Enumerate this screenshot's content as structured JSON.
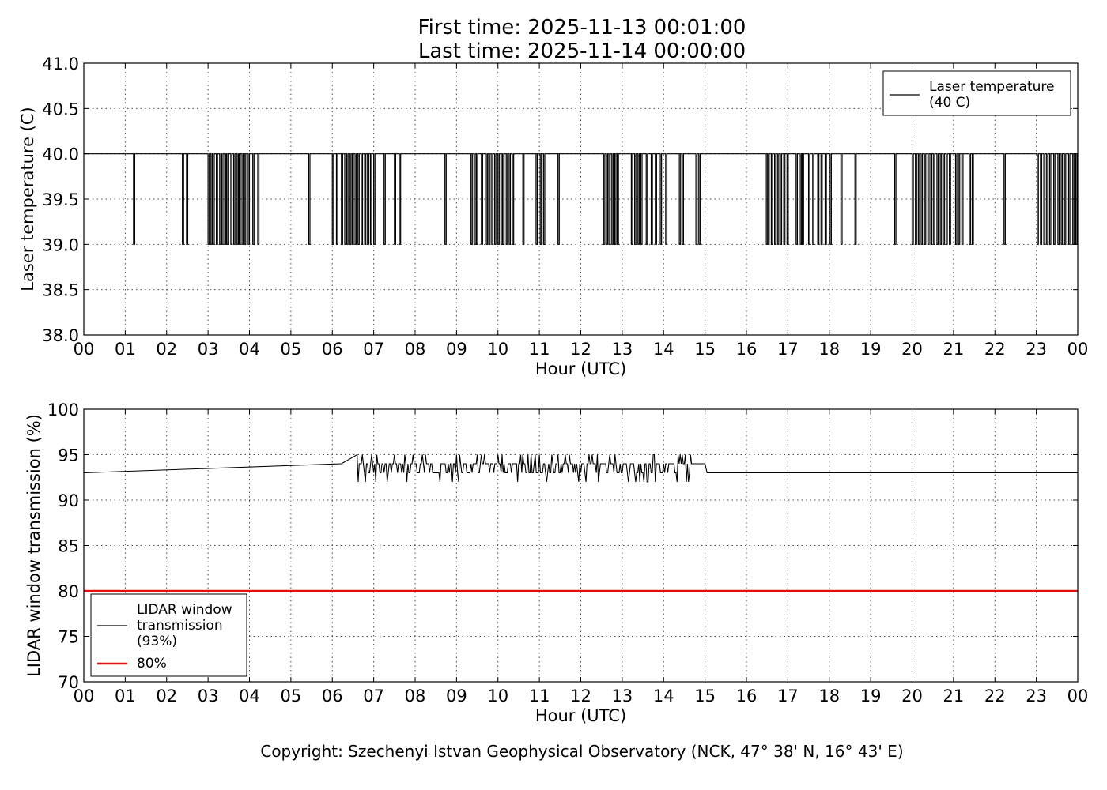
{
  "title_line1": "First time: 2025-11-13 00:01:00",
  "title_line2": "Last time: 2025-11-14 00:00:00",
  "copyright": "Copyright: Szechenyi Istvan Geophysical Observatory (NCK, 47° 38' N, 16° 43' E)",
  "chart_data": [
    {
      "type": "line",
      "xlabel": "Hour (UTC)",
      "ylabel": "Laser temperature (C)",
      "xlim": [
        0,
        24
      ],
      "ylim": [
        38.0,
        41.0
      ],
      "xticks": [
        "00",
        "01",
        "02",
        "03",
        "04",
        "05",
        "06",
        "07",
        "08",
        "09",
        "10",
        "11",
        "12",
        "13",
        "14",
        "15",
        "16",
        "17",
        "18",
        "19",
        "20",
        "21",
        "22",
        "23",
        "00"
      ],
      "yticks": [
        "38.0",
        "38.5",
        "39.0",
        "39.5",
        "40.0",
        "40.5",
        "41.0"
      ],
      "grid": true,
      "legend_position": "upper right",
      "series": [
        {
          "name": "Laser temperature\n(40 C)",
          "color": "#000000",
          "baseline": 40.0,
          "dip_value": 39.0,
          "dip_hours": [
            1.2,
            2.38,
            2.48,
            3.0,
            3.07,
            3.12,
            3.2,
            3.28,
            3.33,
            3.4,
            3.45,
            3.55,
            3.62,
            3.7,
            3.75,
            3.82,
            3.88,
            3.97,
            4.08,
            4.2,
            5.43,
            6.0,
            6.1,
            6.22,
            6.3,
            6.35,
            6.42,
            6.48,
            6.55,
            6.62,
            6.7,
            6.78,
            6.85,
            6.92,
            7.0,
            7.25,
            7.5,
            7.62,
            8.72,
            9.35,
            9.42,
            9.48,
            9.6,
            9.72,
            9.78,
            9.85,
            9.92,
            10.0,
            10.07,
            10.12,
            10.2,
            10.27,
            10.35,
            10.6,
            10.92,
            11.02,
            11.1,
            11.45,
            12.55,
            12.62,
            12.68,
            12.75,
            12.82,
            12.88,
            13.22,
            13.3,
            13.38,
            13.45,
            13.58,
            13.7,
            13.8,
            13.92,
            14.05,
            14.38,
            14.45,
            14.78,
            14.85,
            16.48,
            16.52,
            16.6,
            16.68,
            16.75,
            16.82,
            16.9,
            16.98,
            17.2,
            17.3,
            17.35,
            17.5,
            17.6,
            17.72,
            17.8,
            17.9,
            18.02,
            18.28,
            18.62,
            19.58,
            20.0,
            20.08,
            20.15,
            20.22,
            20.3,
            20.38,
            20.45,
            20.52,
            20.6,
            20.68,
            20.75,
            20.82,
            20.9,
            21.05,
            21.12,
            21.2,
            21.38,
            21.45,
            22.22,
            23.02,
            23.1,
            23.18,
            23.25,
            23.32,
            23.42,
            23.52,
            23.6,
            23.68,
            23.78,
            23.88,
            23.95
          ]
        }
      ]
    },
    {
      "type": "line",
      "xlabel": "Hour (UTC)",
      "ylabel": "LIDAR window transmission (%)",
      "xlim": [
        0,
        24
      ],
      "ylim": [
        70,
        100
      ],
      "xticks": [
        "00",
        "01",
        "02",
        "03",
        "04",
        "05",
        "06",
        "07",
        "08",
        "09",
        "10",
        "11",
        "12",
        "13",
        "14",
        "15",
        "16",
        "17",
        "18",
        "19",
        "20",
        "21",
        "22",
        "23",
        "00"
      ],
      "yticks": [
        "70",
        "75",
        "80",
        "85",
        "90",
        "95",
        "100"
      ],
      "grid": true,
      "legend_position": "lower left",
      "series": [
        {
          "name": "LIDAR window\ntransmission\n(93%)",
          "color": "#000000",
          "baseline": 93,
          "noisy_interval": [
            6.6,
            14.7
          ],
          "noise_values": [
            94,
            95,
            92
          ],
          "spike_hours": [
            6.22,
            14.85,
            15.0
          ]
        },
        {
          "name": "80%",
          "color": "#e01010",
          "value": 80
        }
      ]
    }
  ]
}
